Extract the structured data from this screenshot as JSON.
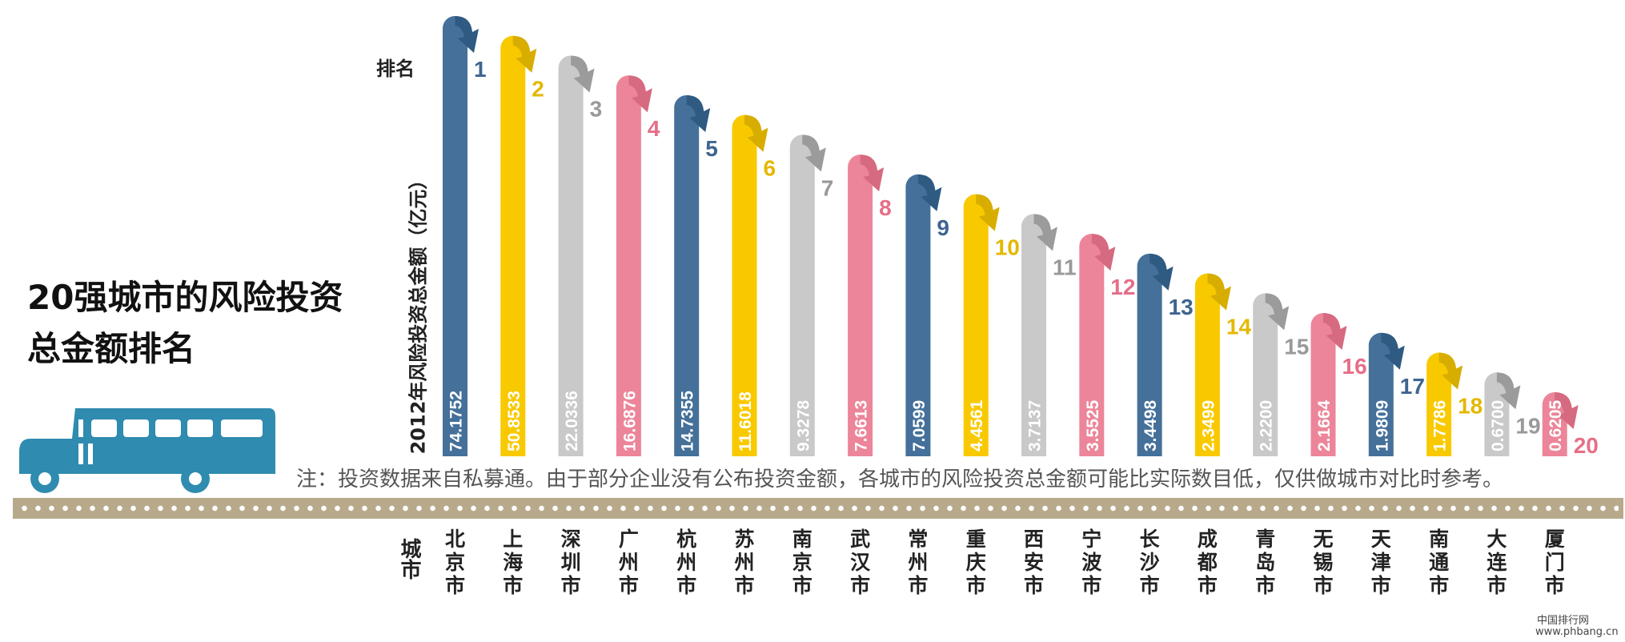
{
  "title_line1": "20强城市的风险投资",
  "title_line2": "总金额排名",
  "rank_label": "排名",
  "ylabel": "2012年风险投资总金额（亿元）",
  "city_axis_label": "城市",
  "note": "注：投资数据来自私募通。由于部分企业没有公布投资金额，各城市的风险投资总金额可能比实际数目低，仅供做城市对比时参考。",
  "footer": {
    "logo": "中国排行网",
    "url": "www.phbang.cn"
  },
  "colors": {
    "blue": "#44709a",
    "yellow": "#f9c900",
    "gray": "#c9c9c9",
    "pink": "#ec8599",
    "road": "#b7a98a",
    "bus": "#2f8bb0"
  },
  "chart_data": {
    "type": "bar",
    "categories": [
      "北京市",
      "上海市",
      "深圳市",
      "广州市",
      "杭州市",
      "苏州市",
      "南京市",
      "武汉市",
      "常州市",
      "重庆市",
      "西安市",
      "宁波市",
      "长沙市",
      "成都市",
      "青岛市",
      "无锡市",
      "天津市",
      "南通市",
      "大连市",
      "厦门市"
    ],
    "values": [
      74.1752,
      50.8533,
      22.0336,
      16.6876,
      14.7355,
      11.6018,
      9.3278,
      7.6613,
      7.0599,
      4.4561,
      3.7137,
      3.5525,
      3.4498,
      2.3499,
      2.22,
      2.1664,
      1.9809,
      1.7786,
      0.67,
      0.6205
    ],
    "value_labels": [
      "74.1752",
      "50.8533",
      "22.0336",
      "16.6876",
      "14.7355",
      "11.6018",
      "9.3278",
      "7.6613",
      "7.0599",
      "4.4561",
      "3.7137",
      "3.5525",
      "3.4498",
      "2.3499",
      "2.2200",
      "2.1664",
      "1.9809",
      "1.7786",
      "0.6700",
      "0.6205"
    ],
    "ranks": [
      "1",
      "2",
      "3",
      "4",
      "5",
      "6",
      "7",
      "8",
      "9",
      "10",
      "11",
      "12",
      "13",
      "14",
      "15",
      "16",
      "17",
      "18",
      "19",
      "20"
    ],
    "bar_colors": [
      "blue",
      "yellow",
      "gray",
      "pink",
      "blue",
      "yellow",
      "gray",
      "pink",
      "blue",
      "yellow",
      "gray",
      "pink",
      "blue",
      "yellow",
      "gray",
      "pink",
      "blue",
      "yellow",
      "gray",
      "pink"
    ],
    "xlabel": "城市",
    "ylabel": "2012年风险投资总金额（亿元）",
    "title": "20强城市的风险投资总金额排名",
    "grid": false,
    "note": "bar heights shown in ranked (non-linear) order"
  }
}
